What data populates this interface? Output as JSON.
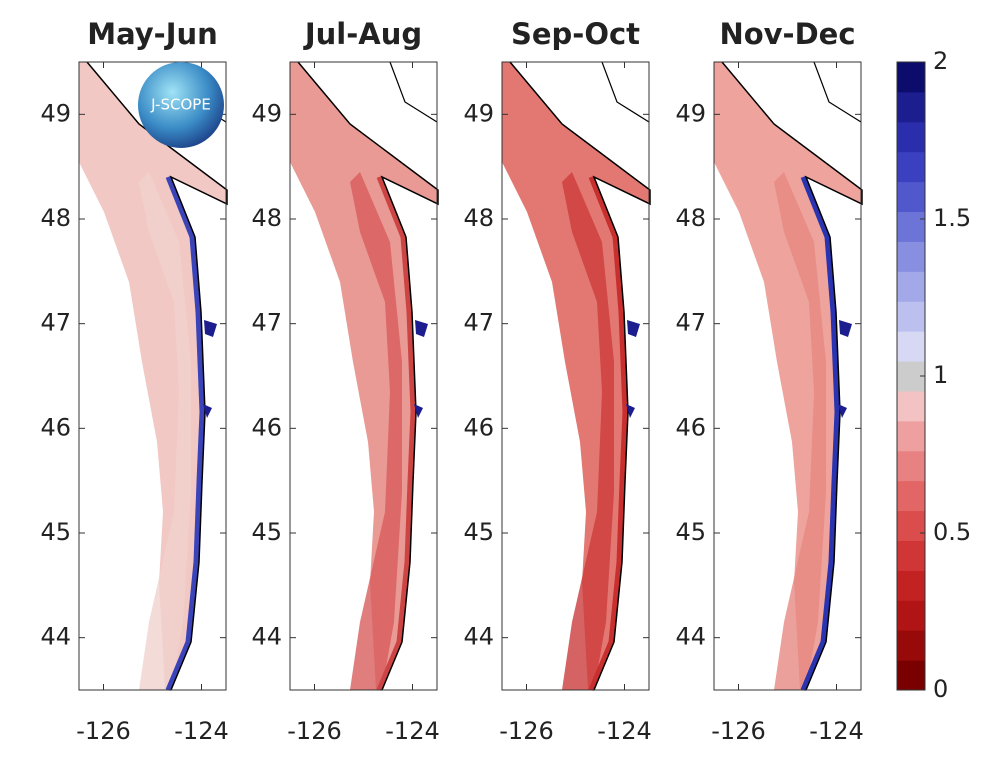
{
  "panels": [
    {
      "title": "May-Jun"
    },
    {
      "title": "Jul-Aug"
    },
    {
      "title": "Sep-Oct"
    },
    {
      "title": "Nov-Dec"
    }
  ],
  "xlim": [
    -126.5,
    -123.5
  ],
  "xticks": [
    -126,
    -124
  ],
  "ylim": [
    43.5,
    49.5
  ],
  "yticks": [
    44,
    45,
    46,
    47,
    48,
    49
  ],
  "logo": "J-SCOPE",
  "colorbar": {
    "lim": [
      0,
      2
    ],
    "ticks": [
      0,
      0.5,
      1,
      1.5,
      2
    ],
    "colors": [
      "#7a0000",
      "#980a0a",
      "#b01414",
      "#c32222",
      "#d13636",
      "#db4c4c",
      "#e26666",
      "#e88282",
      "#eea0a0",
      "#f3c2c2",
      "#cccccc",
      "#d6d8f4",
      "#bcc0ee",
      "#a2a8e8",
      "#888fe0",
      "#6c74d8",
      "#5058cc",
      "#3a40c0",
      "#2a2eac",
      "#1c1e90",
      "#0c0c6c",
      "#c9c9c9"
    ]
  }
}
